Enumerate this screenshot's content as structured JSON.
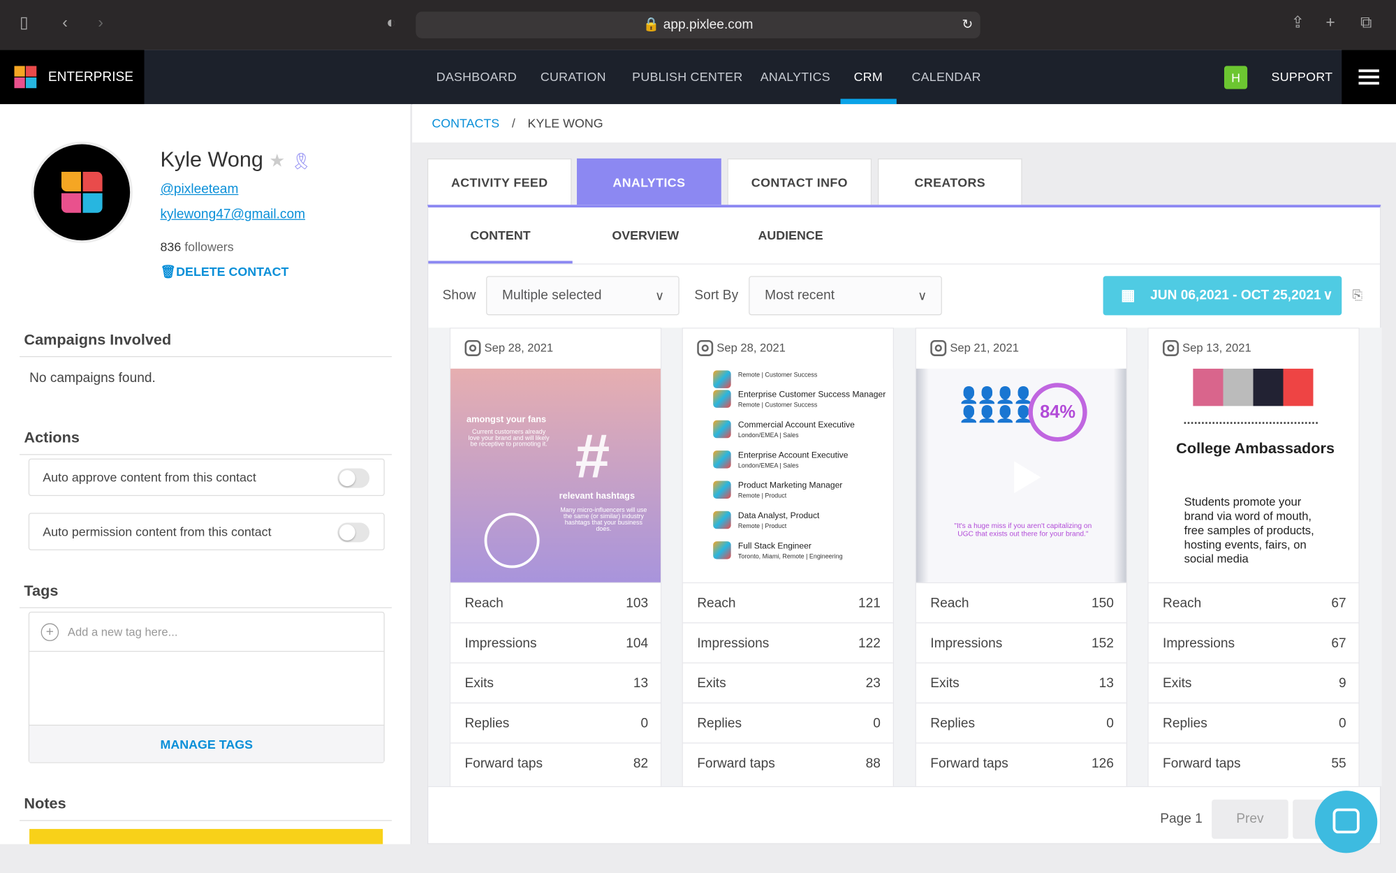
{
  "browser": {
    "url": "app.pixlee.com"
  },
  "app": {
    "brand": "ENTERPRISE",
    "nav": [
      "DASHBOARD",
      "CURATION",
      "PUBLISH CENTER",
      "ANALYTICS",
      "CRM",
      "CALENDAR"
    ],
    "active_nav": "CRM",
    "user_initial": "H",
    "support": "SUPPORT"
  },
  "contact": {
    "name": "Kyle Wong",
    "handle": "@pixleeteam",
    "email": "kylewong47@gmail.com",
    "followers": "836",
    "followers_label": "followers",
    "delete": "DELETE CONTACT"
  },
  "campaigns": {
    "title": "Campaigns Involved",
    "empty": "No campaigns found."
  },
  "actions": {
    "title": "Actions",
    "items": [
      "Auto approve content from this contact",
      "Auto permission content from this contact"
    ],
    "states": [
      false,
      false
    ]
  },
  "tags": {
    "title": "Tags",
    "placeholder": "Add a new tag here...",
    "manage": "MANAGE TAGS"
  },
  "notes": {
    "title": "Notes"
  },
  "breadcrumb": {
    "parent": "CONTACTS",
    "sep": "/",
    "current": "KYLE WONG"
  },
  "tabs": [
    "ACTIVITY FEED",
    "ANALYTICS",
    "CONTACT INFO",
    "CREATORS"
  ],
  "subtabs": [
    "CONTENT",
    "OVERVIEW",
    "AUDIENCE"
  ],
  "filters": {
    "show_label": "Show",
    "show_value": "Multiple selected",
    "sort_label": "Sort By",
    "sort_value": "Most recent",
    "date_range": "JUN 06,2021 - OCT 25,2021"
  },
  "metric_labels": [
    "Reach",
    "Impressions",
    "Exits",
    "Replies",
    "Forward taps"
  ],
  "cards": [
    {
      "date": "Sep 28, 2021",
      "metrics": [
        "103",
        "104",
        "13",
        "0",
        "82"
      ],
      "image_text": [
        "amongst your fans",
        "Current customers already love your brand and will likely be receptive to promoting it.",
        "relevant hashtags",
        "Many micro-influencers will use the same (or similar) industry hashtags that your business does."
      ]
    },
    {
      "date": "Sep 28, 2021",
      "metrics": [
        "121",
        "122",
        "23",
        "0",
        "88"
      ],
      "jobs": [
        [
          "",
          "Remote | Customer Success"
        ],
        [
          "Enterprise Customer Success Manager",
          "Remote | Customer Success"
        ],
        [
          "Commercial Account Executive",
          "London/EMEA | Sales"
        ],
        [
          "Enterprise Account Executive",
          "London/EMEA | Sales"
        ],
        [
          "Product Marketing Manager",
          "Remote | Product"
        ],
        [
          "Data Analyst, Product",
          "Remote | Product"
        ],
        [
          "Full Stack Engineer",
          "Toronto, Miami, Remote | Engineering"
        ]
      ]
    },
    {
      "date": "Sep 21, 2021",
      "metrics": [
        "150",
        "152",
        "13",
        "0",
        "126"
      ],
      "image_text": [
        "84%",
        "\"It's a huge miss if you aren't capitalizing on UGC that exists out there for your brand.\""
      ]
    },
    {
      "date": "Sep 13, 2021",
      "metrics": [
        "67",
        "67",
        "9",
        "0",
        "55"
      ],
      "image_text": [
        "College Ambassadors",
        "Students promote your brand via word of mouth, free samples of products, hosting events, fairs, on social media"
      ]
    }
  ],
  "pagination": {
    "page": "Page 1",
    "prev": "Prev"
  },
  "colors": {
    "accent": "#8c88f2",
    "link": "#0a8fd8",
    "date_button": "#4fcbe3",
    "nav_bg": "#1c212b",
    "active_indicator": "#0aa3e8"
  }
}
